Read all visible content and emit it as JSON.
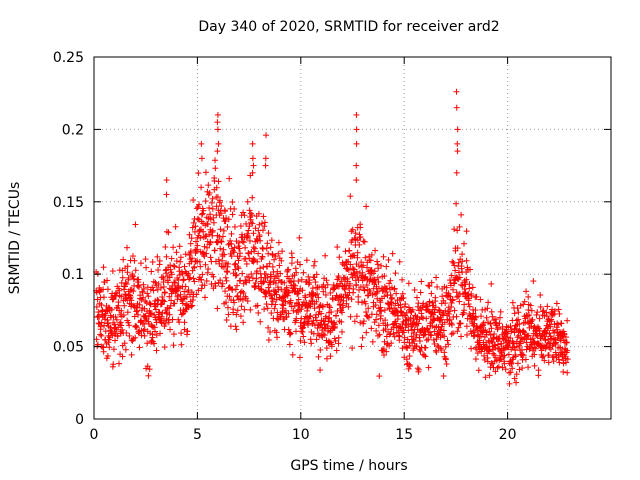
{
  "chart_data": {
    "type": "scatter",
    "title": "Day 340 of 2020, SRMTID for receiver ard2",
    "xlabel": "GPS time / hours",
    "ylabel": "SRMTID / TECUs",
    "xlim": [
      0,
      25
    ],
    "ylim": [
      0,
      0.25
    ],
    "x_ticks": [
      0,
      5,
      10,
      15,
      20
    ],
    "x_tick_labels": [
      "0",
      "5",
      "10",
      "15",
      "20"
    ],
    "y_ticks": [
      0,
      0.05,
      0.1,
      0.15,
      0.2,
      0.25
    ],
    "y_tick_labels": [
      "0",
      "0.05",
      "0.1",
      "0.15",
      "0.2",
      "0.25"
    ],
    "grid": true,
    "marker": "+",
    "color": "#ff0000",
    "series": [
      {
        "name": "SRMTID",
        "envelope_hours": [
          0.0,
          0.5,
          1.0,
          1.5,
          2.0,
          2.5,
          3.0,
          3.5,
          4.0,
          4.5,
          5.0,
          5.5,
          6.0,
          6.5,
          7.0,
          7.5,
          8.0,
          8.5,
          9.0,
          9.5,
          10.0,
          10.5,
          11.0,
          11.5,
          12.0,
          12.5,
          13.0,
          13.5,
          14.0,
          14.5,
          15.0,
          15.5,
          16.0,
          16.5,
          17.0,
          17.5,
          18.0,
          18.5,
          19.0,
          19.5,
          20.0,
          20.5,
          21.0,
          21.5,
          22.0,
          22.5,
          23.0
        ],
        "envelope_mean": [
          0.075,
          0.07,
          0.065,
          0.085,
          0.08,
          0.07,
          0.075,
          0.09,
          0.085,
          0.08,
          0.12,
          0.13,
          0.125,
          0.11,
          0.1,
          0.12,
          0.105,
          0.095,
          0.09,
          0.085,
          0.075,
          0.08,
          0.075,
          0.07,
          0.085,
          0.1,
          0.095,
          0.085,
          0.08,
          0.075,
          0.065,
          0.06,
          0.065,
          0.07,
          0.065,
          0.1,
          0.09,
          0.06,
          0.055,
          0.05,
          0.05,
          0.055,
          0.06,
          0.055,
          0.06,
          0.055,
          0.05
        ],
        "envelope_spread": [
          0.025,
          0.025,
          0.03,
          0.03,
          0.03,
          0.03,
          0.03,
          0.03,
          0.03,
          0.03,
          0.035,
          0.035,
          0.04,
          0.035,
          0.035,
          0.04,
          0.035,
          0.03,
          0.03,
          0.03,
          0.025,
          0.025,
          0.025,
          0.025,
          0.03,
          0.035,
          0.035,
          0.03,
          0.03,
          0.025,
          0.025,
          0.025,
          0.025,
          0.025,
          0.025,
          0.035,
          0.03,
          0.02,
          0.02,
          0.02,
          0.02,
          0.02,
          0.02,
          0.02,
          0.02,
          0.02,
          0.02
        ],
        "bursts": [
          {
            "x": 6.0,
            "values": [
              0.2,
              0.205,
              0.21,
              0.19,
              0.185
            ]
          },
          {
            "x": 7.7,
            "values": [
              0.18,
              0.175,
              0.17,
              0.19
            ]
          },
          {
            "x": 8.3,
            "values": [
              0.196,
              0.18,
              0.175
            ]
          },
          {
            "x": 12.7,
            "values": [
              0.21,
              0.2,
              0.19,
              0.175,
              0.165
            ]
          },
          {
            "x": 17.55,
            "values": [
              0.226,
              0.215,
              0.2,
              0.19,
              0.185,
              0.17
            ]
          },
          {
            "x": 3.5,
            "values": [
              0.165,
              0.155
            ]
          },
          {
            "x": 5.2,
            "values": [
              0.19,
              0.18,
              0.16
            ]
          }
        ],
        "x_min": 0.1,
        "x_max": 22.9,
        "n_points": 2300
      }
    ]
  }
}
